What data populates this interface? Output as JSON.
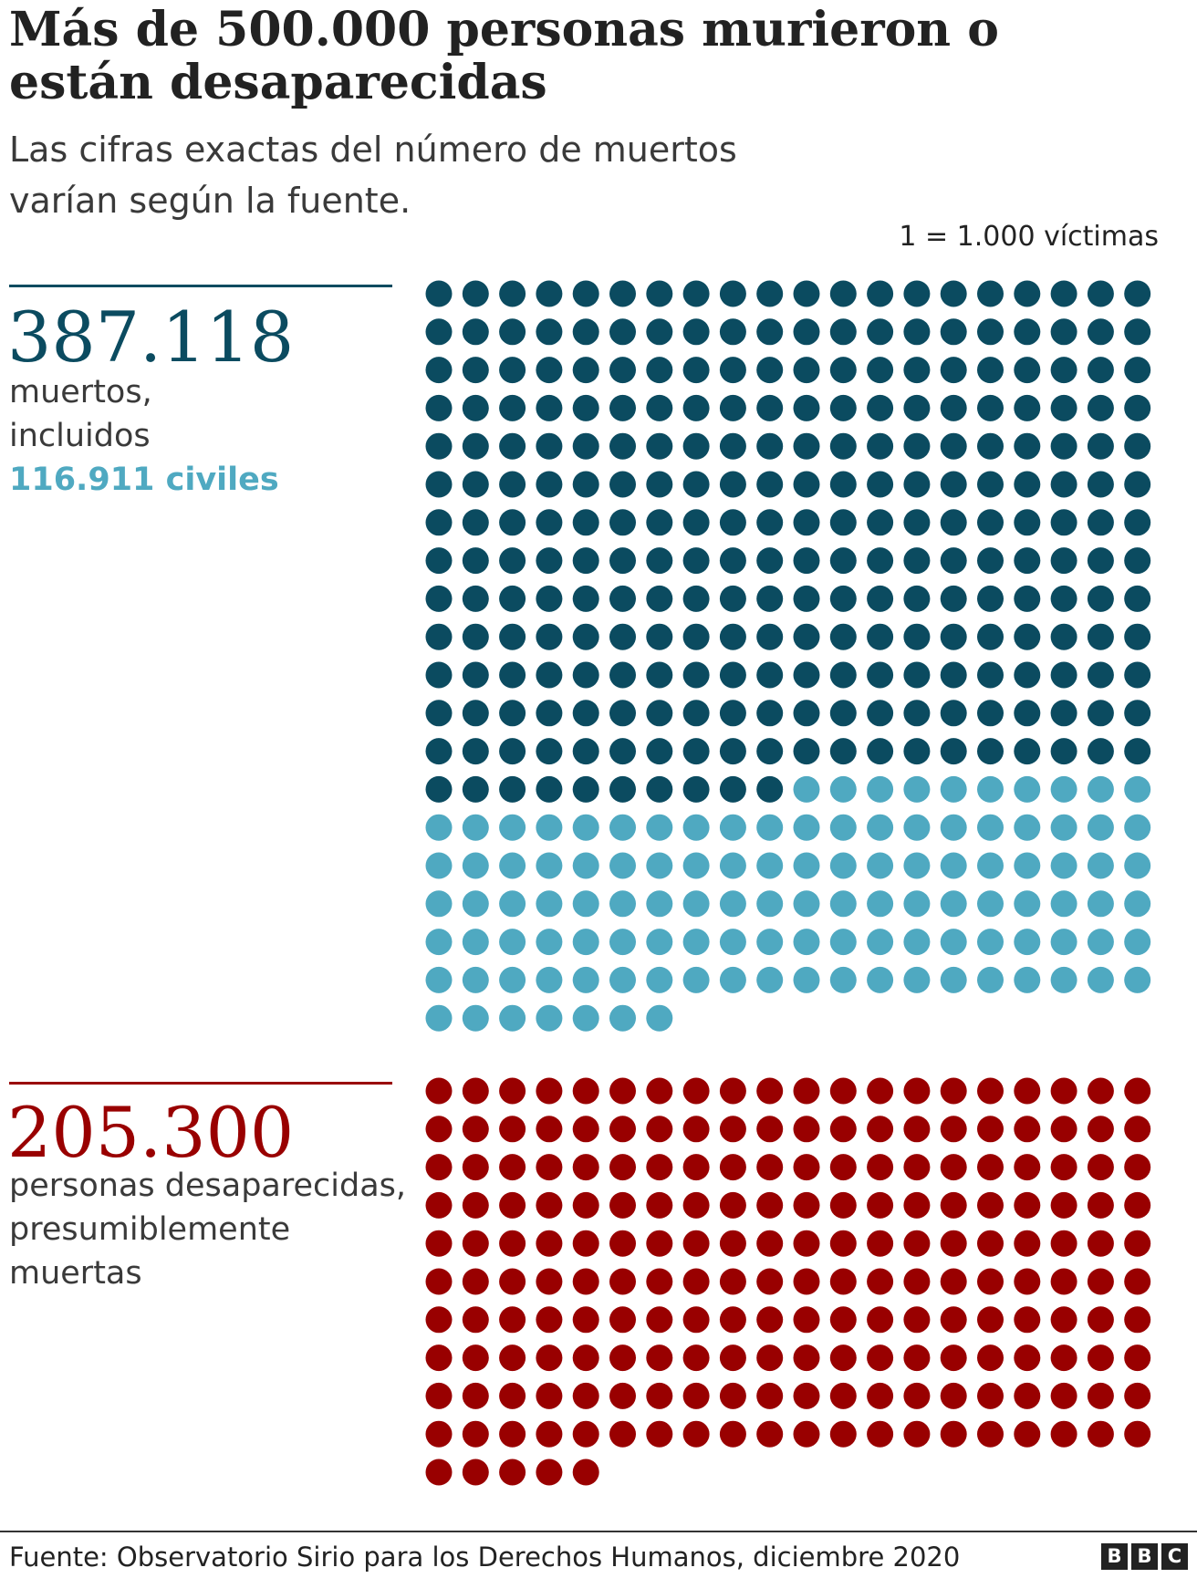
{
  "title": "Más de 500.000 personas murieron o están desaparecidas",
  "subtitle": "Las cifras exactas del número de muertos varían según la fuente.",
  "unit_note": "1 = 1.000 víctimas",
  "colors": {
    "dead": "#0b4b60",
    "civilians": "#4fa9c1",
    "missing": "#990000",
    "text": "#222222"
  },
  "blocks": {
    "dead": {
      "number": "387.118",
      "line1": "muertos,",
      "line2": "incluidos",
      "civilians": "116.911 civiles"
    },
    "missing": {
      "number": "205.300",
      "line1": "personas desaparecidas,",
      "line2": "presumiblemente",
      "line3": "muertas"
    }
  },
  "chart_data": {
    "type": "waffle",
    "unit": "1 = 1.000 víctimas",
    "columns": 20,
    "series": [
      {
        "name": "muertos",
        "value": 387118,
        "dots": 387
      },
      {
        "name": "civiles",
        "value": 116911,
        "dots": 117
      },
      {
        "name": "personas desaparecidas",
        "value": 205300,
        "dots": 205
      }
    ],
    "groups": [
      {
        "total_dots": 387,
        "segments": [
          {
            "series": "muertos",
            "dots": 270
          },
          {
            "series": "civiles",
            "dots": 117
          }
        ]
      },
      {
        "total_dots": 205,
        "segments": [
          {
            "series": "personas desaparecidas",
            "dots": 205
          }
        ]
      }
    ]
  },
  "footer": {
    "source": "Fuente: Observatorio Sirio para los Derechos Humanos, diciembre 2020",
    "logo": [
      "B",
      "B",
      "C"
    ]
  }
}
